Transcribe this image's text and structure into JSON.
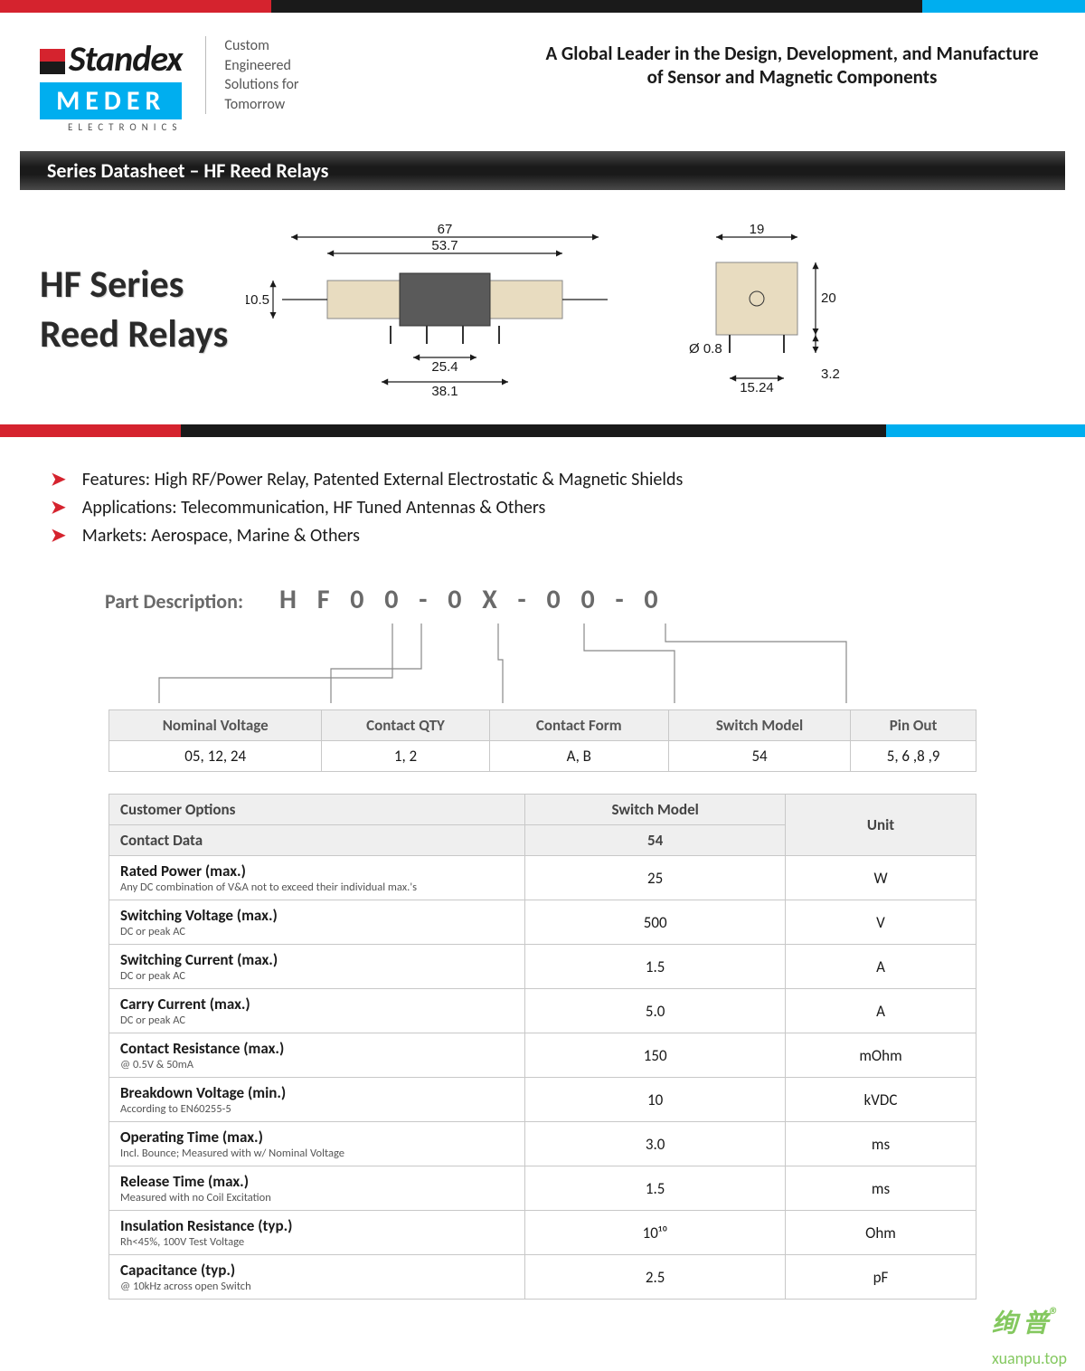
{
  "brand": {
    "name_top": "Standex",
    "name_box": "MEDER",
    "name_sub": "ELECTRONICS",
    "tagline_l1": "Custom",
    "tagline_l2": "Engineered",
    "tagline_l3": "Solutions for",
    "tagline_l4": "Tomorrow"
  },
  "header_right": "A Global Leader in the Design, Development, and Manufacture of Sensor and Magnetic Components",
  "titlebar": "Series Datasheet – HF Reed Relays",
  "hero": {
    "line1": "HF Series",
    "line2": "Reed Relays"
  },
  "diagram": {
    "dims": {
      "overall_w": "67",
      "body_w": "53.7",
      "h": "10.5",
      "pin_pitch_inner": "25.4",
      "pin_pitch_outer": "38.1",
      "side_w": "19",
      "side_h": "20",
      "pin_dia": "Ø 0.8",
      "side_pitch": "15.24",
      "pin_len": "3.2"
    },
    "colors": {
      "body": "#5a5a5a",
      "end": "#e8dcc0",
      "line": "#1a1a1a"
    }
  },
  "features": [
    "Features: High RF/Power Relay, Patented External Electrostatic & Magnetic Shields",
    "Applications: Telecommunication, HF Tuned Antennas & Others",
    "Markets: Aerospace, Marine & Others"
  ],
  "part": {
    "label": "Part Description:",
    "code": "H F  0 0 - 0 X - 0 0 - 0"
  },
  "table1": {
    "headers": [
      "Nominal Voltage",
      "Contact QTY",
      "Contact Form",
      "Switch Model",
      "Pin Out"
    ],
    "row": [
      "05, 12, 24",
      "1, 2",
      "A, B",
      "54",
      "5, 6 ,8 ,9"
    ]
  },
  "table2": {
    "h_cust": "Customer Options",
    "h_switch": "Switch Model",
    "h_unit": "Unit",
    "h_contact": "Contact Data",
    "h_54": "54",
    "rows": [
      {
        "p": "Rated Power (max.)",
        "s": "Any DC combination of V&A not to exceed their individual  max.'s",
        "v": "25",
        "u": "W"
      },
      {
        "p": "Switching Voltage (max.)",
        "s": "DC or peak AC",
        "v": "500",
        "u": "V"
      },
      {
        "p": "Switching Current (max.)",
        "s": "DC or peak AC",
        "v": "1.5",
        "u": "A"
      },
      {
        "p": "Carry Current (max.)",
        "s": "DC or peak AC",
        "v": "5.0",
        "u": "A"
      },
      {
        "p": "Contact Resistance (max.)",
        "s": "@ 0.5V & 50mA",
        "v": "150",
        "u": "mOhm"
      },
      {
        "p": "Breakdown Voltage (min.)",
        "s": "According to EN60255-5",
        "v": "10",
        "u": "kVDC"
      },
      {
        "p": "Operating Time (max.)",
        "s": "Incl. Bounce; Measured with w/ Nominal Voltage",
        "v": "3.0",
        "u": "ms"
      },
      {
        "p": "Release Time (max.)",
        "s": "Measured with no Coil Excitation",
        "v": "1.5",
        "u": "ms"
      },
      {
        "p": "Insulation Resistance (typ.)",
        "s": "Rh<45%, 100V Test Voltage",
        "v": "10¹⁰",
        "u": "Ohm"
      },
      {
        "p": "Capacitance (typ.)",
        "s": "@ 10kHz across open Switch",
        "v": "2.5",
        "u": "pF"
      }
    ]
  },
  "watermark": {
    "cn": "绚 普",
    "reg": "®",
    "url": "xuanpu.top"
  }
}
